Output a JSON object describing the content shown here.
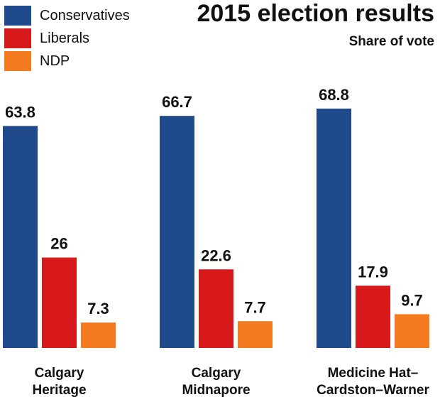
{
  "chart_data": {
    "type": "bar",
    "title": "2015 election results",
    "subtitle": "Share of vote",
    "categories": [
      [
        "Calgary",
        "Heritage"
      ],
      [
        "Calgary",
        "Midnapore"
      ],
      [
        "Medicine Hat–",
        "Cardston–Warner"
      ]
    ],
    "series": [
      {
        "name": "Conservatives",
        "color": "#1f4a8c",
        "labels": [
          "63.8",
          "66.7",
          "68.8"
        ],
        "values": [
          63.8,
          66.7,
          68.8
        ]
      },
      {
        "name": "Liberals",
        "color": "#d7191c",
        "labels": [
          "26",
          "22.6",
          "17.9"
        ],
        "values": [
          26,
          22.6,
          17.9
        ]
      },
      {
        "name": "NDP",
        "color": "#f47a20",
        "labels": [
          "7.3",
          "7.7",
          "9.7"
        ],
        "values": [
          7.3,
          7.7,
          9.7
        ]
      }
    ],
    "ylim": [
      0,
      70
    ],
    "xlabel": "",
    "ylabel": "",
    "legend_position": "top-left",
    "grid": false
  }
}
